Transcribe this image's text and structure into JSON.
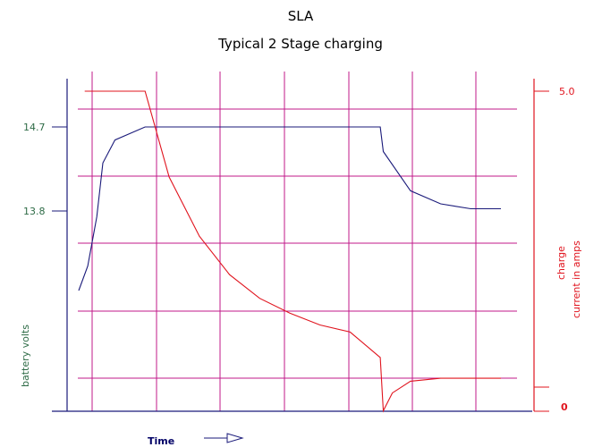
{
  "chart_data": {
    "type": "line",
    "title": "SLA",
    "subtitle": "Typical 2 Stage charging",
    "xlabel": "Time",
    "ylabel_left": "battery volts",
    "ylabel_right_line1": "charge",
    "ylabel_right_line2": "current in amps",
    "left_ticks": [
      "14.7",
      "13.8"
    ],
    "right_ticks": [
      "5.0",
      "0"
    ],
    "grid": true,
    "colors": {
      "voltage": "#1a1a7a",
      "current": "#e0141e",
      "grid": "#c0188a",
      "left_axis_text": "#2e6b46",
      "right_axis_text": "#e0141e",
      "title_text": "#000000",
      "xlabel_text": "#000066"
    },
    "series": [
      {
        "key": "voltage",
        "points": [
          [
            0.0,
            0.0
          ],
          [
            0.3,
            0.15
          ],
          [
            0.6,
            0.45
          ],
          [
            0.8,
            0.78
          ],
          [
            1.2,
            0.92
          ],
          [
            2.2,
            1.0
          ],
          [
            10.0,
            1.0
          ],
          [
            10.1,
            0.85
          ],
          [
            11.0,
            0.61
          ],
          [
            12.0,
            0.53
          ],
          [
            13.0,
            0.5
          ],
          [
            14.0,
            0.5
          ]
        ]
      },
      {
        "key": "current",
        "points": [
          [
            0.2,
            5.0
          ],
          [
            2.2,
            5.0
          ],
          [
            3.0,
            3.55
          ],
          [
            4.0,
            2.55
          ],
          [
            5.0,
            1.9
          ],
          [
            6.0,
            1.5
          ],
          [
            7.0,
            1.25
          ],
          [
            8.0,
            1.05
          ],
          [
            9.0,
            0.93
          ],
          [
            10.0,
            0.5
          ],
          [
            10.1,
            -0.4
          ],
          [
            10.4,
            -0.1
          ],
          [
            11.0,
            0.1
          ],
          [
            12.0,
            0.15
          ],
          [
            14.0,
            0.15
          ]
        ]
      }
    ]
  }
}
